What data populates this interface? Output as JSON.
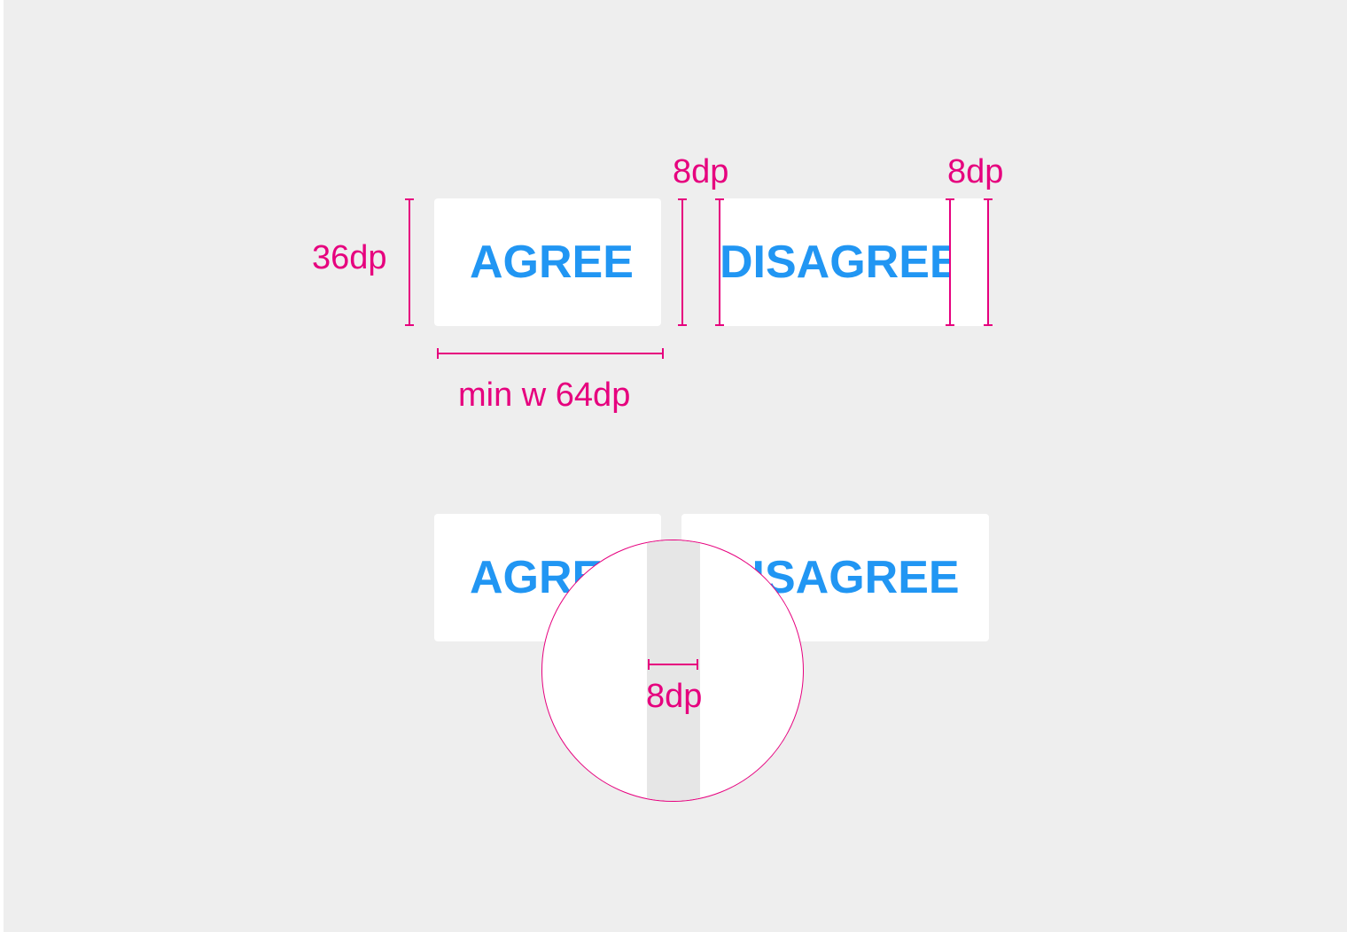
{
  "colors": {
    "annotation": "#e6007e",
    "button_text": "#2196f3",
    "button_bg": "#ffffff",
    "canvas_bg": "#eeeeee",
    "gap_fill": "#e6e6e6"
  },
  "top_row": {
    "agree_label": "AGREE",
    "disagree_label": "DISAGREE",
    "height_label": "36dp",
    "padding_label_1": "8dp",
    "padding_label_2": "8dp",
    "min_width_label": "min w 64dp"
  },
  "bottom_row": {
    "agree_label": "AGREE",
    "disagree_label": "DISAGREE",
    "gap_label": "8dp"
  }
}
